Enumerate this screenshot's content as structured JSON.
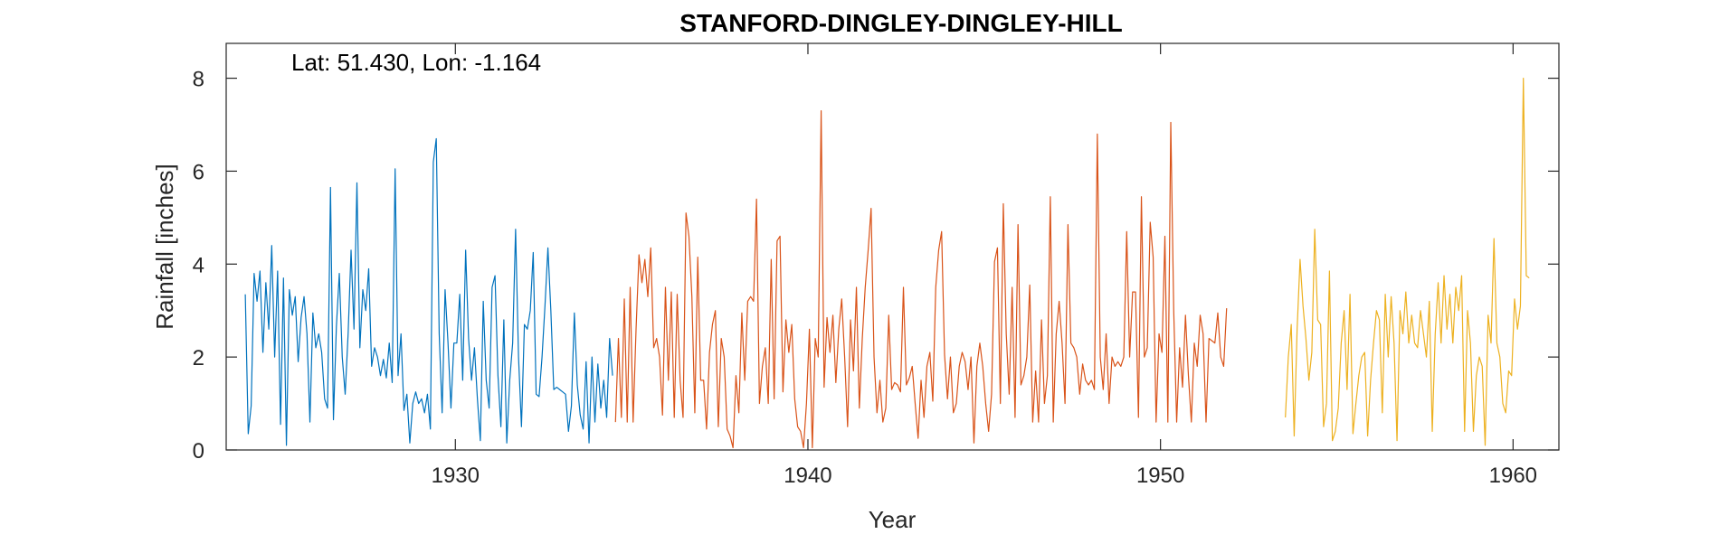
{
  "chart_data": {
    "type": "line",
    "title": "STANFORD-DINGLEY-DINGLEY-HILL",
    "xlabel": "Year",
    "ylabel": "Rainfall [inches]",
    "annotation": "Lat: 51.430, Lon: -1.164",
    "xlim": [
      1923.5,
      1961.3
    ],
    "ylim": [
      0,
      8.75
    ],
    "xticks": [
      1930,
      1940,
      1950,
      1960
    ],
    "yticks": [
      0,
      2,
      4,
      6,
      8
    ],
    "grid": false,
    "legend": "none",
    "series": [
      {
        "color": "#0072BD",
        "start": [
          1924,
          1
        ],
        "values": [
          3.35,
          0.35,
          0.95,
          3.8,
          3.2,
          3.85,
          2.1,
          3.6,
          2.6,
          4.4,
          2.0,
          3.85,
          0.55,
          3.7,
          0.1,
          3.45,
          2.9,
          3.3,
          1.9,
          2.85,
          3.3,
          2.5,
          0.6,
          2.95,
          2.2,
          2.5,
          2.1,
          1.1,
          0.9,
          5.65,
          0.65,
          2.65,
          3.8,
          2.0,
          1.2,
          2.5,
          4.3,
          2.6,
          5.75,
          2.2,
          3.45,
          3.0,
          3.9,
          1.8,
          2.2,
          2.0,
          1.6,
          1.95,
          1.55,
          2.3,
          1.45,
          6.05,
          1.6,
          2.5,
          0.85,
          1.2,
          0.15,
          1.0,
          1.25,
          1.0,
          1.1,
          0.8,
          1.2,
          0.45,
          6.2,
          6.7,
          2.5,
          0.8,
          3.45,
          2.3,
          0.9,
          2.3,
          2.3,
          3.35,
          1.5,
          4.3,
          2.4,
          1.5,
          2.2,
          1.1,
          0.2,
          3.2,
          1.5,
          0.9,
          3.5,
          3.75,
          1.6,
          0.5,
          2.8,
          0.15,
          1.5,
          2.3,
          4.75,
          2.0,
          0.5,
          2.7,
          2.6,
          3.0,
          4.25,
          1.2,
          1.15,
          2.0,
          3.1,
          4.35,
          3.0,
          1.3,
          1.35,
          1.3,
          1.25,
          1.2,
          0.4,
          0.95,
          2.95,
          1.4,
          0.75,
          0.45,
          1.9,
          0.15,
          2.0,
          0.6,
          1.85,
          0.9,
          1.5,
          0.7,
          2.4,
          1.6
        ]
      },
      {
        "color": "#D95319",
        "start": [
          1934,
          7
        ],
        "values": [
          0.6,
          2.4,
          0.7,
          3.25,
          0.6,
          3.5,
          0.6,
          2.6,
          4.2,
          3.6,
          4.1,
          3.3,
          4.35,
          2.2,
          2.4,
          2.0,
          0.75,
          3.5,
          1.5,
          3.4,
          0.7,
          3.35,
          1.5,
          0.7,
          5.1,
          4.6,
          3.3,
          0.8,
          4.15,
          1.5,
          1.5,
          0.45,
          2.1,
          2.7,
          3.0,
          0.5,
          2.4,
          2.0,
          0.45,
          0.3,
          0.05,
          1.6,
          0.8,
          2.95,
          1.5,
          3.2,
          3.3,
          3.2,
          5.4,
          1.0,
          1.8,
          2.2,
          1.0,
          4.1,
          1.1,
          4.5,
          4.6,
          1.25,
          2.8,
          2.1,
          2.7,
          1.1,
          0.5,
          0.4,
          0.05,
          1.0,
          2.6,
          0.05,
          2.4,
          2.0,
          7.3,
          1.35,
          2.85,
          2.1,
          2.9,
          1.45,
          2.6,
          3.25,
          2.0,
          0.5,
          2.8,
          1.7,
          3.5,
          0.9,
          2.4,
          3.5,
          4.3,
          5.2,
          2.0,
          0.8,
          1.5,
          0.6,
          0.9,
          2.9,
          1.3,
          1.45,
          1.4,
          1.25,
          3.5,
          1.4,
          1.55,
          1.8,
          1.0,
          0.25,
          1.5,
          0.7,
          1.8,
          2.1,
          1.05,
          3.5,
          4.3,
          4.7,
          2.05,
          1.1,
          2.0,
          0.8,
          1.0,
          1.8,
          2.1,
          1.9,
          1.3,
          2.0,
          0.15,
          1.8,
          2.3,
          1.8,
          1.0,
          0.4,
          1.2,
          4.05,
          4.35,
          1.0,
          5.3,
          2.5,
          1.2,
          3.5,
          0.7,
          4.85,
          1.4,
          1.6,
          2.0,
          3.55,
          0.6,
          1.7,
          0.6,
          2.8,
          1.0,
          1.6,
          5.45,
          0.6,
          2.5,
          3.2,
          2.3,
          1.0,
          4.85,
          2.3,
          2.2,
          2.0,
          1.2,
          1.85,
          1.5,
          1.4,
          1.5,
          1.3,
          6.8,
          2.0,
          1.3,
          2.5,
          1.0,
          2.0,
          1.8,
          1.9,
          1.8,
          2.0,
          4.7,
          2.0,
          3.4,
          3.4,
          0.7,
          5.45,
          2.0,
          2.2,
          4.9,
          4.15,
          0.6,
          2.5,
          2.1,
          4.6,
          0.6,
          7.05,
          3.0,
          0.6,
          2.2,
          1.35,
          2.9,
          1.6,
          0.6,
          2.3,
          1.8,
          2.9,
          2.5,
          0.6,
          2.4,
          2.35,
          2.3,
          2.95,
          2.0,
          1.8,
          3.05
        ]
      },
      {
        "color": "#EDB120",
        "start": [
          1953,
          7
        ],
        "values": [
          0.7,
          2.0,
          2.7,
          0.3,
          2.6,
          4.1,
          3.1,
          2.4,
          1.5,
          2.1,
          4.75,
          2.8,
          2.7,
          0.5,
          1.0,
          3.85,
          0.2,
          0.4,
          0.9,
          2.3,
          3.0,
          1.3,
          3.35,
          0.35,
          1.0,
          1.6,
          2.0,
          2.1,
          0.3,
          1.5,
          2.3,
          3.0,
          2.8,
          0.8,
          3.35,
          2.0,
          3.3,
          2.3,
          0.2,
          3.0,
          2.5,
          3.4,
          2.3,
          2.9,
          2.3,
          2.2,
          3.0,
          2.5,
          2.0,
          3.2,
          0.4,
          2.5,
          3.6,
          2.3,
          3.75,
          2.6,
          3.35,
          2.3,
          3.5,
          3.0,
          3.75,
          0.4,
          3.0,
          2.3,
          0.4,
          1.6,
          2.0,
          1.8,
          0.1,
          2.9,
          2.3,
          4.55,
          2.3,
          2.0,
          1.0,
          0.8,
          1.7,
          1.6,
          3.25,
          2.6,
          3.1,
          8.0,
          3.75,
          3.7
        ]
      }
    ]
  }
}
